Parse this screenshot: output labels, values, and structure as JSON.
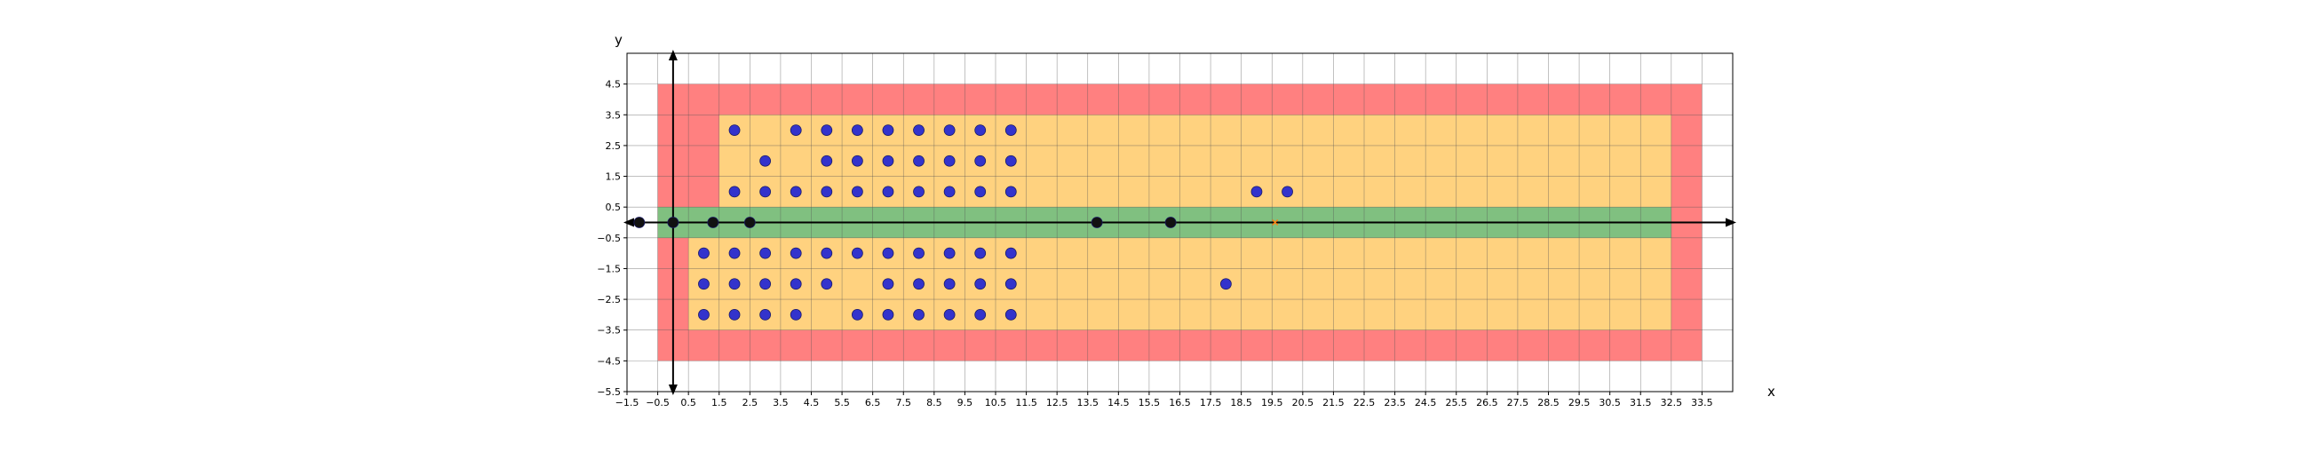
{
  "chart_data": {
    "type": "scatter",
    "title": "",
    "xlabel": "x",
    "ylabel": "y",
    "xlim": [
      -1.5,
      34.5
    ],
    "ylim": [
      -5.5,
      5.5
    ],
    "grid": true,
    "x_ticks": [
      -1.5,
      -0.5,
      0.5,
      1.5,
      2.5,
      3.5,
      4.5,
      5.5,
      6.5,
      7.5,
      8.5,
      9.5,
      10.5,
      11.5,
      12.5,
      13.5,
      14.5,
      15.5,
      16.5,
      17.5,
      18.5,
      19.5,
      20.5,
      21.5,
      22.5,
      23.5,
      24.5,
      25.5,
      26.5,
      27.5,
      28.5,
      29.5,
      30.5,
      31.5,
      32.5,
      33.5
    ],
    "x_tick_labels": [
      "−1.5",
      "−0.5",
      "0.5",
      "1.5",
      "2.5",
      "3.5",
      "4.5",
      "5.5",
      "6.5",
      "7.5",
      "8.5",
      "9.5",
      "10.5",
      "11.5",
      "12.5",
      "13.5",
      "14.5",
      "15.5",
      "16.5",
      "17.5",
      "18.5",
      "19.5",
      "20.5",
      "21.5",
      "22.5",
      "23.5",
      "24.5",
      "25.5",
      "26.5",
      "27.5",
      "28.5",
      "29.5",
      "30.5",
      "31.5",
      "32.5",
      "33.5"
    ],
    "y_ticks": [
      -5.5,
      -4.5,
      -3.5,
      -2.5,
      -1.5,
      -0.5,
      0.5,
      1.5,
      2.5,
      3.5,
      4.5
    ],
    "y_tick_labels": [
      "−5.5",
      "−4.5",
      "−3.5",
      "−2.5",
      "−1.5",
      "−0.5",
      "0.5",
      "1.5",
      "2.5",
      "3.5",
      "4.5"
    ],
    "regions": [
      {
        "color": "#ff8080",
        "x": [
          -0.5,
          33.5
        ],
        "y": [
          -4.5,
          4.5
        ]
      },
      {
        "color": "#ffd27f",
        "x": [
          0.5,
          32.5
        ],
        "y": [
          -3.5,
          -0.5
        ]
      },
      {
        "color": "#ffd27f",
        "x": [
          1.5,
          32.5
        ],
        "y": [
          0.5,
          3.5
        ]
      },
      {
        "color": "#80c080",
        "x": [
          -0.5,
          32.5
        ],
        "y": [
          -0.5,
          0.5
        ]
      }
    ],
    "series": [
      {
        "color": "#3333cc",
        "marker": "circle",
        "points": [
          [
            2,
            3
          ],
          [
            4,
            3
          ],
          [
            5,
            3
          ],
          [
            6,
            3
          ],
          [
            7,
            3
          ],
          [
            8,
            3
          ],
          [
            9,
            3
          ],
          [
            10,
            3
          ],
          [
            11,
            3
          ],
          [
            3,
            2
          ],
          [
            5,
            2
          ],
          [
            6,
            2
          ],
          [
            7,
            2
          ],
          [
            8,
            2
          ],
          [
            9,
            2
          ],
          [
            10,
            2
          ],
          [
            11,
            2
          ],
          [
            2,
            1
          ],
          [
            3,
            1
          ],
          [
            4,
            1
          ],
          [
            5,
            1
          ],
          [
            6,
            1
          ],
          [
            7,
            1
          ],
          [
            8,
            1
          ],
          [
            9,
            1
          ],
          [
            10,
            1
          ],
          [
            11,
            1
          ],
          [
            19,
            1
          ],
          [
            20,
            1
          ],
          [
            1,
            -1
          ],
          [
            2,
            -1
          ],
          [
            3,
            -1
          ],
          [
            4,
            -1
          ],
          [
            5,
            -1
          ],
          [
            6,
            -1
          ],
          [
            7,
            -1
          ],
          [
            8,
            -1
          ],
          [
            9,
            -1
          ],
          [
            10,
            -1
          ],
          [
            11,
            -1
          ],
          [
            1,
            -2
          ],
          [
            2,
            -2
          ],
          [
            3,
            -2
          ],
          [
            4,
            -2
          ],
          [
            5,
            -2
          ],
          [
            7,
            -2
          ],
          [
            8,
            -2
          ],
          [
            9,
            -2
          ],
          [
            10,
            -2
          ],
          [
            11,
            -2
          ],
          [
            18,
            -2
          ],
          [
            1,
            -3
          ],
          [
            2,
            -3
          ],
          [
            3,
            -3
          ],
          [
            4,
            -3
          ],
          [
            6,
            -3
          ],
          [
            7,
            -3
          ],
          [
            8,
            -3
          ],
          [
            9,
            -3
          ],
          [
            10,
            -3
          ],
          [
            11,
            -3
          ]
        ]
      },
      {
        "color": "#111111",
        "marker": "circle",
        "points": [
          [
            -1.1,
            0
          ],
          [
            0,
            0
          ],
          [
            1.3,
            0
          ],
          [
            2.5,
            0
          ],
          [
            13.8,
            0
          ],
          [
            16.2,
            0
          ]
        ]
      },
      {
        "color": "#ff7f0e",
        "marker": "cross",
        "points": [
          [
            19.6,
            0
          ]
        ]
      }
    ]
  }
}
